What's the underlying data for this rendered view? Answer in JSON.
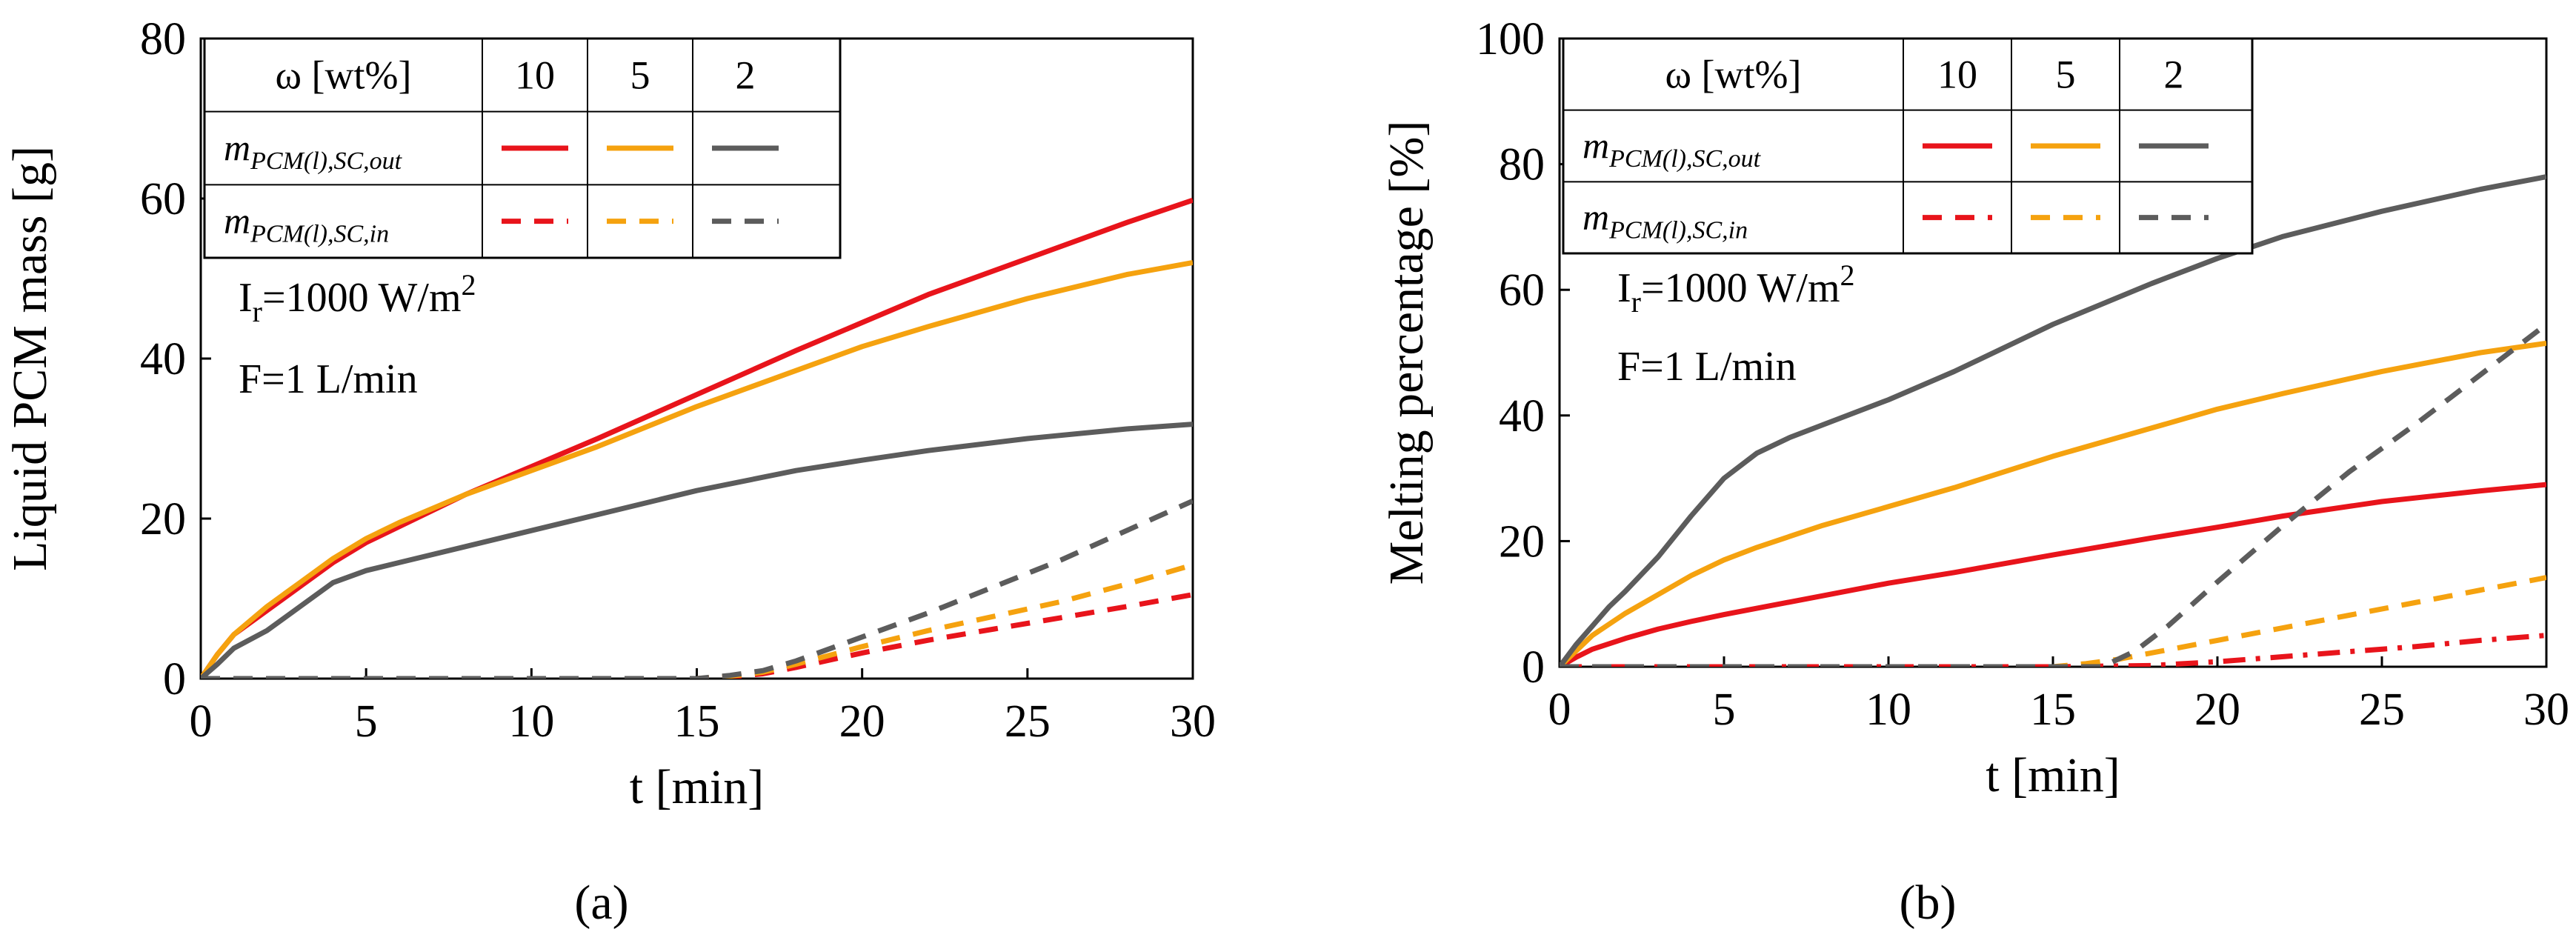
{
  "chart_data": [
    {
      "id": "a",
      "type": "line",
      "panel_label": "(a)",
      "xlabel": "t [min]",
      "ylabel": "Liquid PCM mass [g]",
      "xlim": [
        0,
        30
      ],
      "ylim": [
        0,
        80
      ],
      "xticks": [
        0,
        5,
        10,
        15,
        20,
        25,
        30
      ],
      "yticks": [
        0,
        20,
        40,
        60,
        80
      ],
      "conditions": {
        "irradiance_prefix": "I",
        "irradiance_sub": "r",
        "irradiance_value": "=1000 W/m",
        "irradiance_sup": "2",
        "flow": "F=1 L/min"
      },
      "legend": {
        "header_label": "ω  [wt%]",
        "columns": [
          "10",
          "5",
          "2"
        ],
        "rows": [
          {
            "base": "m",
            "sub": "PCM(l),SC,out",
            "style": "solid"
          },
          {
            "base": "m",
            "sub": "PCM(l),SC,in",
            "style": "dashed"
          }
        ]
      },
      "colors": {
        "10": "#e8141b",
        "5": "#f5a20f",
        "2": "#5c5c5c"
      },
      "series": [
        {
          "name": "m_PCM(l),SC,out ω=10",
          "group": "10",
          "style": "solid",
          "x": [
            0,
            0.5,
            1,
            2,
            3,
            4,
            5,
            6,
            8,
            10,
            12,
            15,
            18,
            20,
            22,
            25,
            28,
            30
          ],
          "y": [
            0,
            3,
            5.5,
            8.5,
            11.5,
            14.5,
            17,
            19,
            23,
            26.5,
            30,
            35.5,
            41,
            44.5,
            48,
            52.5,
            57,
            59.8
          ]
        },
        {
          "name": "m_PCM(l),SC,out ω=5",
          "group": "5",
          "style": "solid",
          "x": [
            0,
            0.5,
            1,
            2,
            3,
            4,
            5,
            6,
            8,
            10,
            12,
            15,
            18,
            20,
            22,
            25,
            28,
            30
          ],
          "y": [
            0,
            3,
            5.5,
            9,
            12,
            15,
            17.5,
            19.5,
            23,
            26,
            29,
            34,
            38.5,
            41.5,
            44,
            47.5,
            50.5,
            52
          ]
        },
        {
          "name": "m_PCM(l),SC,out ω=2",
          "group": "2",
          "style": "solid",
          "x": [
            0,
            0.5,
            1,
            2,
            3,
            4,
            5,
            6,
            8,
            10,
            12,
            15,
            18,
            20,
            22,
            25,
            28,
            30
          ],
          "y": [
            0,
            1.8,
            3.8,
            6,
            9,
            12,
            13.5,
            14.5,
            16.5,
            18.5,
            20.5,
            23.5,
            26,
            27.3,
            28.5,
            30,
            31.2,
            31.8
          ]
        },
        {
          "name": "m_PCM(l),SC,in ω=10",
          "group": "10",
          "style": "dashed",
          "x": [
            0,
            15,
            16,
            17,
            18,
            20,
            22,
            24,
            26,
            28,
            30
          ],
          "y": [
            0,
            0,
            0.2,
            0.6,
            1.4,
            3.2,
            4.8,
            6.2,
            7.6,
            9.0,
            10.5
          ]
        },
        {
          "name": "m_PCM(l),SC,in ω=5",
          "group": "5",
          "style": "dashed",
          "x": [
            0,
            15,
            16,
            17,
            18,
            20,
            22,
            24,
            26,
            28,
            30
          ],
          "y": [
            0,
            0,
            0.3,
            0.8,
            1.8,
            4.0,
            6.0,
            7.8,
            9.6,
            11.8,
            14.2
          ]
        },
        {
          "name": "m_PCM(l),SC,in ω=2",
          "group": "2",
          "style": "dashed",
          "x": [
            0,
            15,
            16,
            17,
            18,
            20,
            22,
            24,
            26,
            28,
            30
          ],
          "y": [
            0,
            0,
            0.4,
            1.0,
            2.2,
            5.2,
            8.2,
            11.5,
            14.8,
            18.5,
            22.2
          ]
        }
      ]
    },
    {
      "id": "b",
      "type": "line",
      "panel_label": "(b)",
      "xlabel": "t [min]",
      "ylabel": "Melting percentage [%]",
      "xlim": [
        0,
        30
      ],
      "ylim": [
        0,
        100
      ],
      "xticks": [
        0,
        5,
        10,
        15,
        20,
        25,
        30
      ],
      "yticks": [
        0,
        20,
        40,
        60,
        80,
        100
      ],
      "conditions": {
        "irradiance_prefix": "I",
        "irradiance_sub": "r",
        "irradiance_value": "=1000 W/m",
        "irradiance_sup": "2",
        "flow": "F=1 L/min"
      },
      "legend": {
        "header_label": "ω  [wt%]",
        "columns": [
          "10",
          "5",
          "2"
        ],
        "rows": [
          {
            "base": "m",
            "sub": "PCM(l),SC,out",
            "style": "solid"
          },
          {
            "base": "m",
            "sub": "PCM(l),SC,in",
            "style": "dashed"
          }
        ]
      },
      "colors": {
        "10": "#e8141b",
        "5": "#f5a20f",
        "2": "#5c5c5c"
      },
      "series": [
        {
          "name": "out ω=10",
          "group": "10",
          "style": "solid",
          "x": [
            0,
            0.5,
            1,
            2,
            3,
            4,
            5,
            6,
            8,
            10,
            12,
            15,
            18,
            20,
            22,
            25,
            28,
            30
          ],
          "y": [
            0,
            1.5,
            2.8,
            4.5,
            6,
            7.2,
            8.3,
            9.3,
            11.3,
            13.3,
            15,
            17.8,
            20.5,
            22.2,
            24,
            26.3,
            28,
            29
          ]
        },
        {
          "name": "out ω=5",
          "group": "5",
          "style": "solid",
          "x": [
            0,
            0.5,
            1,
            2,
            3,
            4,
            5,
            6,
            8,
            10,
            12,
            15,
            18,
            20,
            22,
            25,
            28,
            30
          ],
          "y": [
            0,
            2.5,
            5,
            8.5,
            11.5,
            14.5,
            17,
            19,
            22.5,
            25.5,
            28.5,
            33.5,
            38,
            41,
            43.5,
            47,
            50,
            51.5
          ]
        },
        {
          "name": "out ω=2",
          "group": "2",
          "style": "solid",
          "x": [
            0,
            0.5,
            1,
            1.5,
            2,
            3,
            4,
            5,
            6,
            7,
            8,
            10,
            12,
            15,
            18,
            20,
            22,
            25,
            28,
            30
          ],
          "y": [
            0,
            3.5,
            6.5,
            9.5,
            12,
            17.5,
            24,
            30,
            34,
            36.5,
            38.5,
            42.5,
            47,
            54.5,
            61,
            65,
            68.5,
            72.5,
            76,
            78
          ]
        },
        {
          "name": "in ω=10",
          "group": "10",
          "style": "dashdot",
          "x": [
            0,
            15,
            18,
            20,
            22,
            24,
            26,
            28,
            30
          ],
          "y": [
            0,
            0,
            0.2,
            0.8,
            1.6,
            2.4,
            3.2,
            4.2,
            5.0
          ]
        },
        {
          "name": "in ω=5",
          "group": "5",
          "style": "dashed",
          "x": [
            0,
            15,
            16,
            17,
            18,
            20,
            22,
            24,
            26,
            28,
            30
          ],
          "y": [
            0,
            0,
            0.5,
            1.2,
            2.2,
            4.2,
            6.2,
            8.2,
            10.2,
            12.2,
            14.2
          ]
        },
        {
          "name": "in ω=2",
          "group": "2",
          "style": "dashed",
          "x": [
            0,
            16.5,
            17.5,
            18.5,
            20,
            22,
            24,
            26,
            28,
            30
          ],
          "y": [
            0,
            0,
            2.5,
            6.5,
            13.5,
            22.5,
            31,
            38.5,
            46.5,
            54.5
          ]
        }
      ]
    }
  ]
}
